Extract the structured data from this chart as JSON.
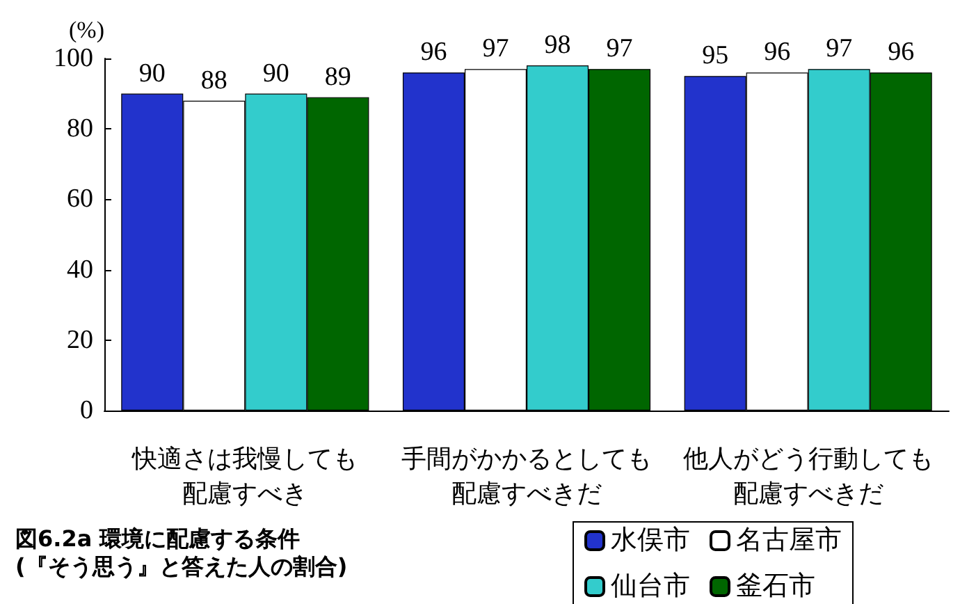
{
  "chart_data": {
    "type": "bar",
    "title": "図6.2a 環境に配慮する条件",
    "subtitle": "(『そう思う』と答えた人の割合)",
    "ylabel": "(%)",
    "categories": [
      "快適さは我慢しても配慮すべき",
      "手間がかかるとしても配慮すべきだ",
      "他人がどう行動しても配慮すべきだ"
    ],
    "series": [
      {
        "name": "水俣市",
        "color": "#2233cc",
        "values": [
          90,
          96,
          95
        ]
      },
      {
        "name": "名古屋市",
        "color": "#ffffff",
        "values": [
          88,
          97,
          96
        ]
      },
      {
        "name": "仙台市",
        "color": "#33cccc",
        "values": [
          90,
          98,
          97
        ]
      },
      {
        "name": "釜石市",
        "color": "#006600",
        "values": [
          89,
          97,
          96
        ]
      }
    ],
    "ylim": [
      0,
      100
    ],
    "yticks": [
      0,
      20,
      40,
      60,
      80,
      100
    ],
    "data_labels": true,
    "grid": false,
    "legend": "bottom right"
  }
}
